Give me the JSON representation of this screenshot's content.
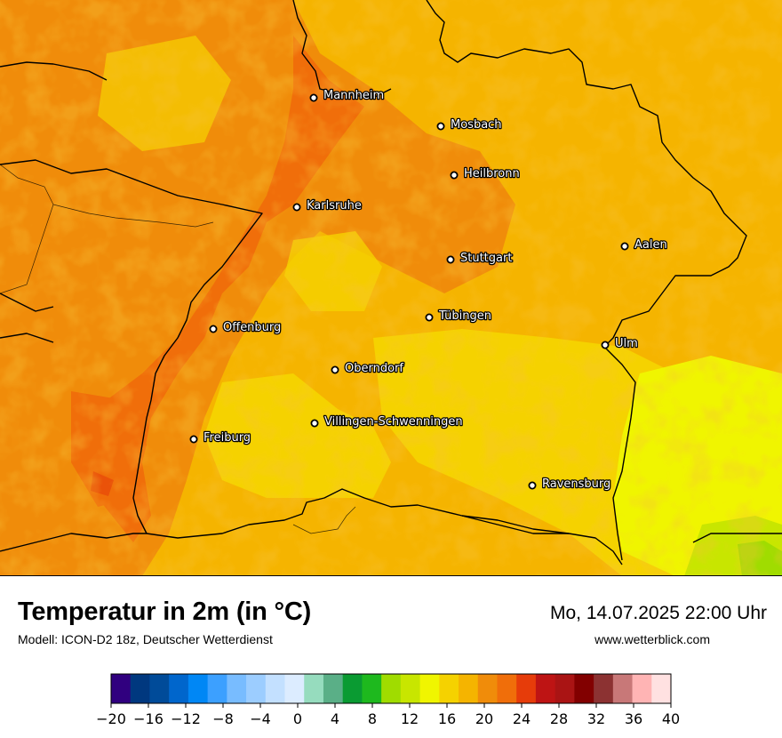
{
  "title": "Temperatur in 2m (in °C)",
  "model": "Modell: ICON-D2 18z, Deutscher Wetterdienst",
  "datetime": "Mo, 14.07.2025 22:00 Uhr",
  "website": "www.wetterblick.com",
  "map": {
    "region": "Baden-Württemberg",
    "cities": [
      {
        "name": "Mannheim",
        "icon": "city-dot-icon"
      },
      {
        "name": "Mosbach",
        "icon": "city-dot-icon"
      },
      {
        "name": "Heilbronn",
        "icon": "city-dot-icon"
      },
      {
        "name": "Karlsruhe",
        "icon": "city-dot-icon"
      },
      {
        "name": "Aalen",
        "icon": "city-dot-icon"
      },
      {
        "name": "Stuttgart",
        "icon": "city-dot-icon"
      },
      {
        "name": "Tübingen",
        "icon": "city-dot-icon"
      },
      {
        "name": "Offenburg",
        "icon": "city-dot-icon"
      },
      {
        "name": "Ulm",
        "icon": "city-dot-icon"
      },
      {
        "name": "Oberndorf",
        "icon": "city-dot-icon"
      },
      {
        "name": "Villingen-Schwenningen",
        "icon": "city-dot-icon"
      },
      {
        "name": "Freiburg",
        "icon": "city-dot-icon"
      },
      {
        "name": "Ravensburg",
        "icon": "city-dot-icon"
      }
    ]
  },
  "legend": {
    "unit": "°C",
    "min": -20,
    "max": 40,
    "step": 2,
    "tick_labels": [
      "−20",
      "−16",
      "−12",
      "−8",
      "−4",
      "0",
      "4",
      "8",
      "12",
      "16",
      "20",
      "24",
      "28",
      "32",
      "36",
      "40"
    ],
    "colors": [
      "#30007f",
      "#00387f",
      "#004b99",
      "#0066cc",
      "#0087f5",
      "#3ca0ff",
      "#78bcff",
      "#9ccdff",
      "#c3e0ff",
      "#dcecff",
      "#96dcbe",
      "#5aaf87",
      "#0a9b32",
      "#1eb91e",
      "#a0dc00",
      "#c8e600",
      "#f0f500",
      "#f5d200",
      "#f5b400",
      "#f08c0a",
      "#f06e0a",
      "#e63c0a",
      "#be1414",
      "#aa1414",
      "#820000",
      "#8c3232",
      "#c87878",
      "#ffb4b4",
      "#ffe1e1"
    ]
  }
}
